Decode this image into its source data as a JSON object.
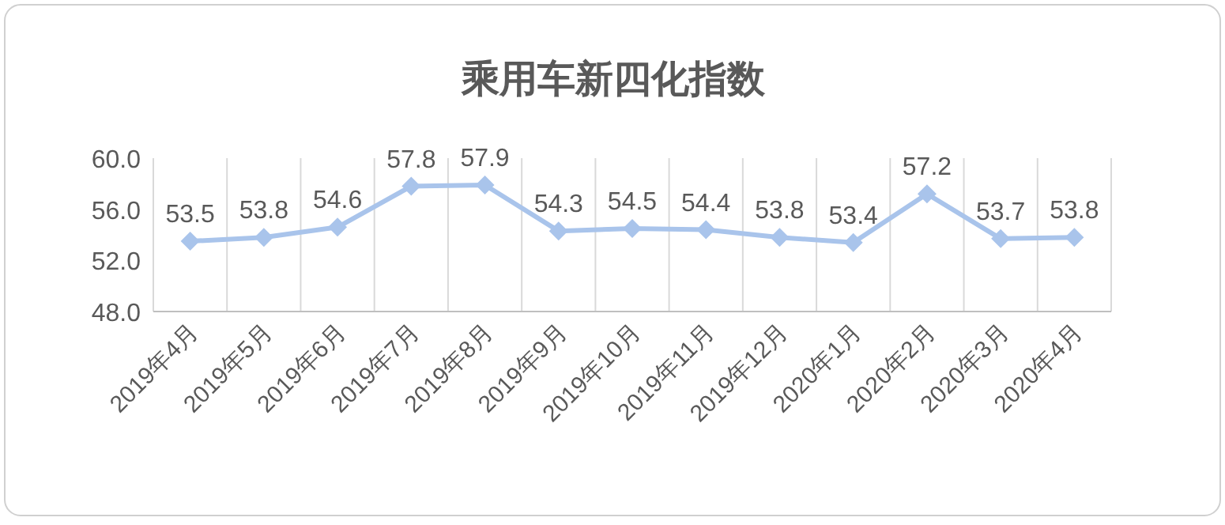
{
  "chart_data": {
    "type": "line",
    "title": "乘用车新四化指数",
    "categories": [
      "2019年4月",
      "2019年5月",
      "2019年6月",
      "2019年7月",
      "2019年8月",
      "2019年9月",
      "2019年10月",
      "2019年11月",
      "2019年12月",
      "2020年1月",
      "2020年2月",
      "2020年3月",
      "2020年4月"
    ],
    "values": [
      53.5,
      53.8,
      54.6,
      57.8,
      57.9,
      54.3,
      54.5,
      54.4,
      53.8,
      53.4,
      57.2,
      53.7,
      53.8
    ],
    "color": "#a9c4eb",
    "ylim": [
      48,
      60
    ],
    "yticks": [
      {
        "value": 48,
        "label": "48.0"
      },
      {
        "value": 52,
        "label": "52.0"
      },
      {
        "value": 56,
        "label": "56.0"
      },
      {
        "value": 60,
        "label": "60.0"
      }
    ],
    "grid": "x",
    "marker": "diamond",
    "line_style": "solid",
    "data_labels": true
  }
}
